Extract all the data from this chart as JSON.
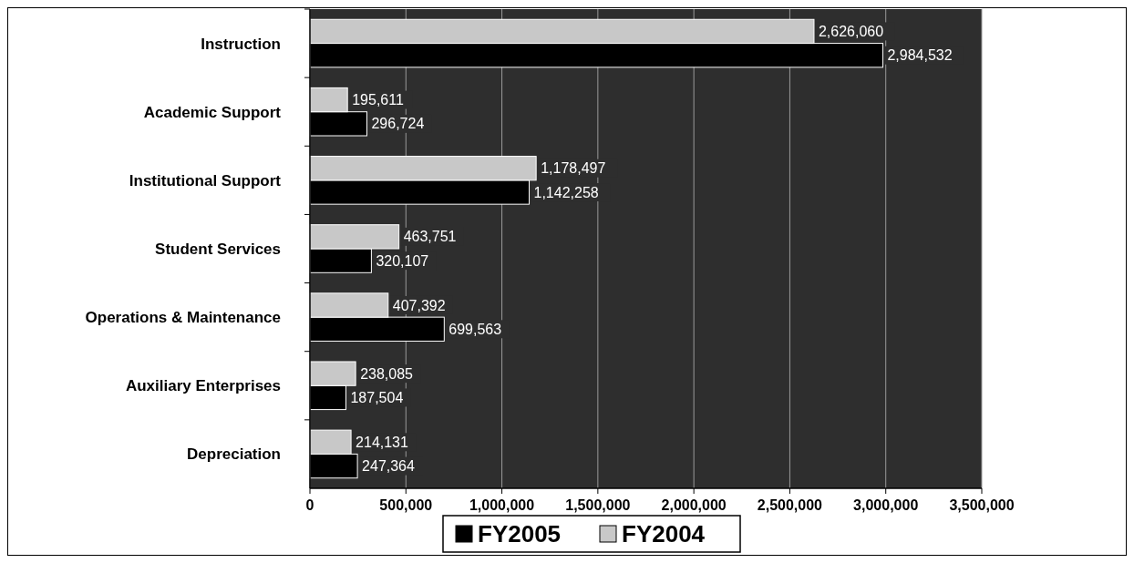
{
  "chart_data": {
    "type": "bar",
    "orientation": "horizontal",
    "categories": [
      "Instruction",
      "Academic Support",
      "Institutional Support",
      "Student Services",
      "Operations & Maintenance",
      "Auxiliary Enterprises",
      "Depreciation"
    ],
    "series": [
      {
        "name": "FY2005",
        "color": "#000000",
        "values": [
          2984532,
          296724,
          1142258,
          320107,
          699563,
          187504,
          247364
        ],
        "value_labels": [
          "2,984,532",
          "296,724",
          "1,142,258",
          "320,107",
          "699,563",
          "187,504",
          "247,364"
        ]
      },
      {
        "name": "FY2004",
        "color": "#c8c8c8",
        "values": [
          2626060,
          195611,
          1178497,
          463751,
          407392,
          238085,
          214131
        ],
        "value_labels": [
          "2,626,060",
          "195,611",
          "1,178,497",
          "463,751",
          "407,392",
          "238,085",
          "214,131"
        ]
      }
    ],
    "xlim": [
      0,
      3500000
    ],
    "xticks": [
      0,
      {
        "value": 500000,
        "label": "500,000"
      },
      {
        "value": 1000000,
        "label": "1,000,000"
      },
      {
        "value": 1500000,
        "label": "1,500,000"
      },
      {
        "value": 2000000,
        "label": "2,000,000"
      },
      {
        "value": 2500000,
        "label": "2,500,000"
      },
      {
        "value": 3000000,
        "label": "3,000,000"
      },
      {
        "value": 3500000,
        "label": "3,500,000"
      }
    ],
    "grid": "x",
    "legend": "bottom"
  }
}
